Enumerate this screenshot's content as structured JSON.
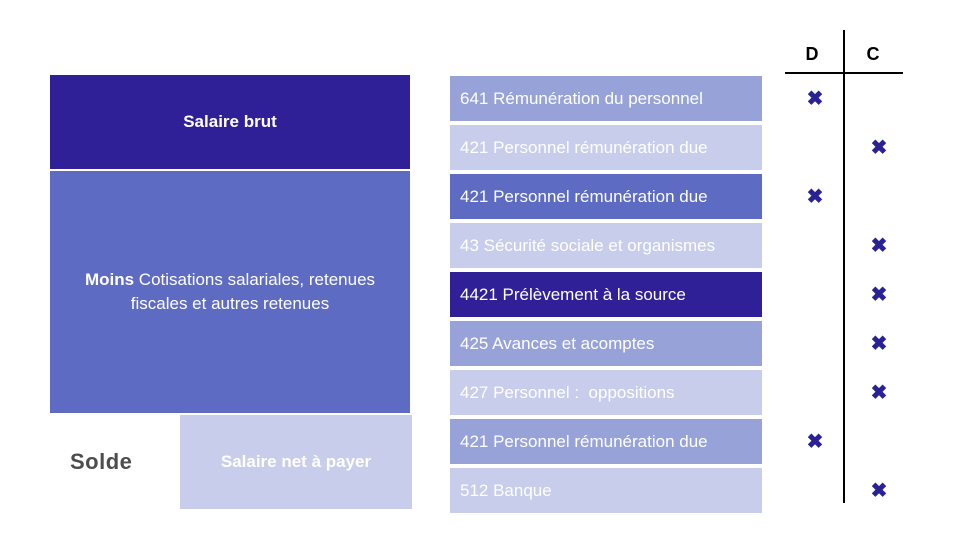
{
  "palette": {
    "dark": "#2F2097",
    "strong": "#5D6BC2",
    "medium": "#97A2D9",
    "light": "#C8CDEB",
    "mark": "#2A2195",
    "solde_text": "#4D4D4D",
    "line": "#000000"
  },
  "left_flow": {
    "salaire_brut": "Salaire brut",
    "moins_bold": "Moins",
    "moins_rest": " Cotisations salariales, retenues fiscales et autres retenues",
    "solde": "Solde",
    "salaire_net": "Salaire net à payer"
  },
  "ledger": {
    "debit_header": "D",
    "credit_header": "C",
    "mark_glyph": "✖",
    "rows": [
      {
        "label": "641 Rémunération du personnel",
        "tone": "medium",
        "column": "D"
      },
      {
        "label": "421 Personnel rémunération due",
        "tone": "light",
        "column": "C"
      },
      {
        "label": "421 Personnel rémunération due",
        "tone": "strong",
        "column": "D"
      },
      {
        "label": "43 Sécurité sociale et organismes",
        "tone": "light",
        "column": "C"
      },
      {
        "label": "4421 Prélèvement à la source",
        "tone": "dark",
        "column": "C"
      },
      {
        "label": "425 Avances et acomptes",
        "tone": "medium",
        "column": "C"
      },
      {
        "label": "427 Personnel :  oppositions",
        "tone": "light",
        "column": "C"
      },
      {
        "label": "421 Personnel rémunération due",
        "tone": "medium",
        "column": "D"
      },
      {
        "label": "512 Banque",
        "tone": "light",
        "column": "C"
      }
    ]
  }
}
